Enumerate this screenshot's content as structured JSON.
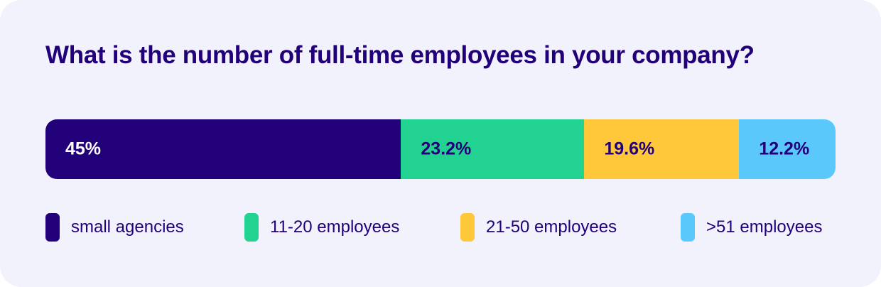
{
  "chart_data": {
    "type": "bar",
    "orientation": "horizontal-stacked",
    "title": "What is the number of full-time employees in your company?",
    "categories": [
      "small agencies",
      "11-20 employees",
      "21-50 employees",
      ">51 employees"
    ],
    "values": [
      45,
      23.2,
      19.6,
      12.2
    ],
    "value_labels": [
      "45%",
      "23.2%",
      "19.6%",
      "12.2%"
    ],
    "unit": "%",
    "legend_position": "bottom",
    "grid": false,
    "colors": [
      "#22007a",
      "#22d291",
      "#ffc83a",
      "#5ac8fb"
    ],
    "label_colors": [
      "#ffffff",
      "#22007a",
      "#22007a",
      "#22007a"
    ]
  }
}
